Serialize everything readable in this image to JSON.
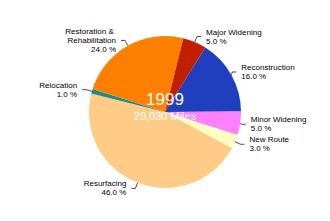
{
  "chart_data": {
    "type": "pie",
    "title": "1999",
    "subtitle": "29,030 Miles",
    "categories": [
      "Reconstruction",
      "Minor Widening",
      "New Route",
      "Resurfacing",
      "Relocation",
      "Restoration & Rehabilitation",
      "Major Widening"
    ],
    "values": [
      16,
      5,
      3,
      46,
      1,
      24,
      5
    ],
    "value_labels": [
      "16.0 %",
      "5.0 %",
      "3.0 %",
      "46.0 %",
      "1.0 %",
      "24.0 %",
      "5.0 %"
    ],
    "colors": [
      "#1f3fbf",
      "#ff80ff",
      "#ffffc0",
      "#ffcc88",
      "#1a8c8c",
      "#ff8000",
      "#c02000"
    ],
    "data_labels": true
  }
}
